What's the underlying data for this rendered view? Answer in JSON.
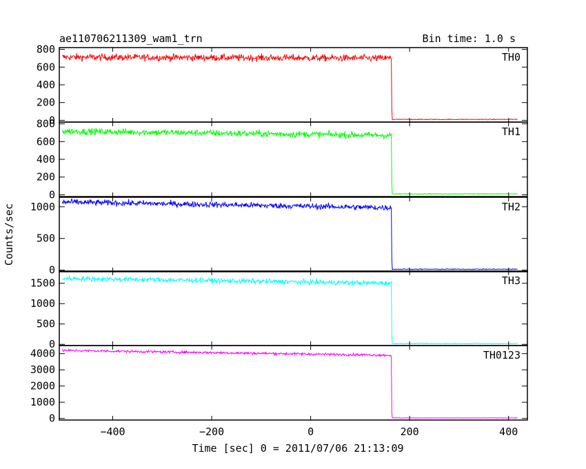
{
  "chart_data": {
    "type": "line",
    "title": "ae110706211309_wam1_trn",
    "subtitle": "Bin time: 1.0 s",
    "xlabel": "Time [sec] 0 = 2011/07/06 21:13:09",
    "ylabel": "Counts/sec",
    "xlim": [
      -508,
      438
    ],
    "x_ticks": [
      -400,
      -200,
      0,
      200,
      400
    ],
    "drop_time": 163,
    "series_end": 418,
    "grid": false,
    "panels": [
      {
        "name": "TH0",
        "color": "#ff0000",
        "ylim": [
          -20,
          820
        ],
        "y_ticks": [
          0,
          200,
          400,
          600,
          800
        ],
        "level_start": 712,
        "level_end": 700,
        "noise": 50,
        "low_level": 10
      },
      {
        "name": "TH1",
        "color": "#00ff00",
        "ylim": [
          -20,
          820
        ],
        "y_ticks": [
          0,
          200,
          400,
          600,
          800
        ],
        "level_start": 718,
        "level_end": 670,
        "noise": 48,
        "low_level": 10
      },
      {
        "name": "TH2",
        "color": "#0000ff",
        "ylim": [
          -25,
          1150
        ],
        "y_ticks": [
          0,
          500,
          1000
        ],
        "level_start": 1075,
        "level_end": 985,
        "noise": 60,
        "low_level": 15
      },
      {
        "name": "TH3",
        "color": "#00ffff",
        "ylim": [
          -30,
          1800
        ],
        "y_ticks": [
          0,
          500,
          1000,
          1500
        ],
        "level_start": 1620,
        "level_end": 1500,
        "noise": 80,
        "low_level": 20
      },
      {
        "name": "TH0123",
        "color": "#ff00ff",
        "ylim": [
          -100,
          4500
        ],
        "y_ticks": [
          0,
          1000,
          2000,
          3000,
          4000
        ],
        "level_start": 4200,
        "level_end": 3900,
        "noise": 100,
        "low_level": 30
      }
    ]
  }
}
